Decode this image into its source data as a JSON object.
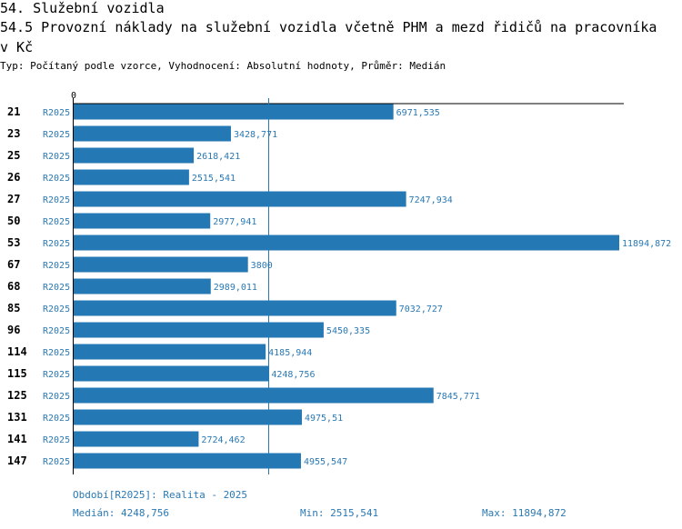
{
  "header": {
    "title_line1": "54. Služební vozidla",
    "title_line2": "54.5 Provozní náklady na služební vozidla včetně PHM a mezd řidičů na pracovníka",
    "title_line3": "v Kč",
    "subtitle": "Typ: Počítaný podle vzorce, Vyhodnocení: Absolutní hodnoty, Průměr: Medián"
  },
  "chart_data": {
    "type": "bar",
    "orientation": "horizontal",
    "title": "54.5 Provozní náklady na služební vozidla včetně PHM a mezd řidičů na pracovníka v Kč",
    "categories": [
      "21",
      "23",
      "25",
      "26",
      "27",
      "50",
      "53",
      "67",
      "68",
      "85",
      "96",
      "114",
      "115",
      "125",
      "131",
      "141",
      "147"
    ],
    "series": [
      {
        "name": "R2025",
        "values": [
          6971.535,
          3428.771,
          2618.421,
          2515.541,
          7247.934,
          2977.941,
          11894.872,
          3800,
          2989.011,
          7032.727,
          5450.335,
          4185.944,
          4248.756,
          7845.771,
          4975.51,
          2724.462,
          4955.547
        ],
        "value_labels": [
          "6971,535",
          "3428,771",
          "2618,421",
          "2515,541",
          "7247,934",
          "2977,941",
          "11894,872",
          "3800",
          "2989,011",
          "7032,727",
          "5450,335",
          "4185,944",
          "4248,756",
          "7845,771",
          "4975,51",
          "2724,462",
          "4955,547"
        ]
      }
    ],
    "x_axis_start_label": "0",
    "xlim": [
      0,
      11894.872
    ],
    "median_line": 4248.756,
    "colors": {
      "bar": "#2479b5",
      "text": "#2a79b4",
      "median": "#2479b5"
    }
  },
  "footer": {
    "period": "Období[R2025]: Realita - 2025",
    "median": "Medián: 4248,756",
    "min": "Min: 2515,541",
    "max": "Max: 11894,872"
  }
}
